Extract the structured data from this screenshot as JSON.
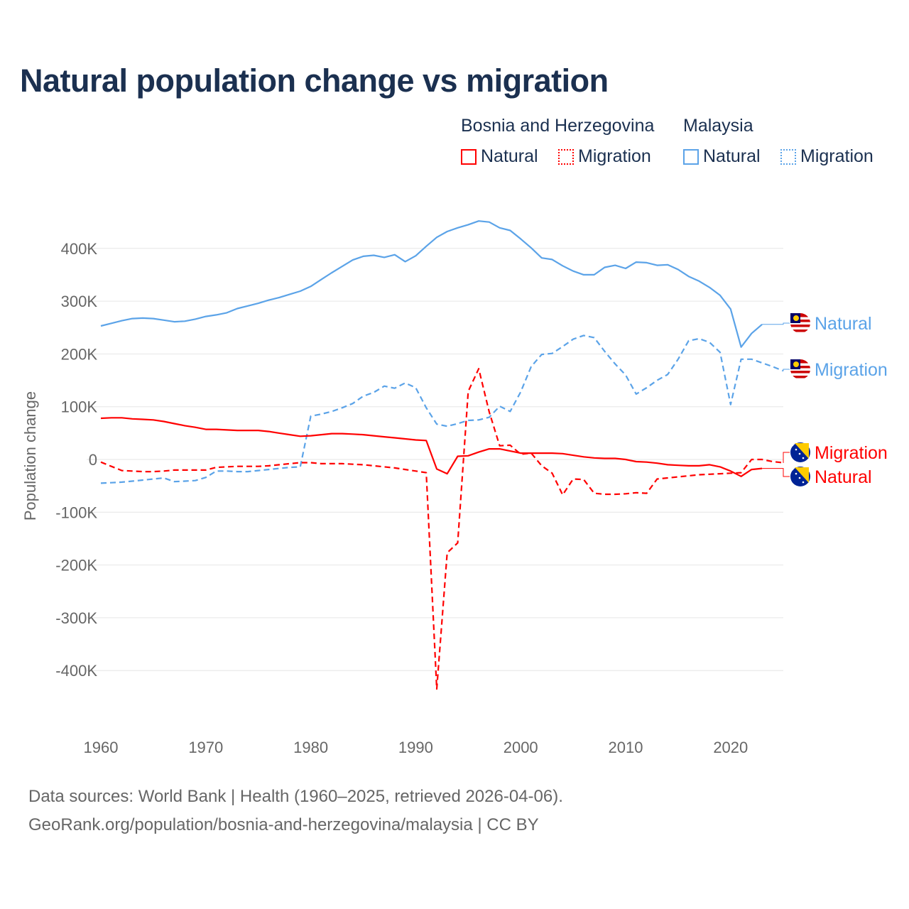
{
  "title": "Natural population change vs migration",
  "legend": {
    "groups": [
      {
        "name": "Bosnia and Herzegovina",
        "color": "#ff0000",
        "items": [
          "Natural",
          "Migration"
        ]
      },
      {
        "name": "Malaysia",
        "color": "#5ba3e8",
        "items": [
          "Natural",
          "Migration"
        ]
      }
    ]
  },
  "footer": {
    "line1": "Data sources: World Bank | Health (1960–2025, retrieved 2026-04-06).",
    "line2": "GeoRank.org/population/bosnia-and-herzegovina/malaysia | CC BY"
  },
  "chart_data": {
    "type": "line",
    "title": "Natural population change vs migration",
    "xlabel": "",
    "ylabel": "Population change",
    "xlim": [
      1960,
      2025
    ],
    "ylim": [
      -500000,
      450000
    ],
    "x_ticks": [
      1960,
      1970,
      1980,
      1990,
      2000,
      2010,
      2020
    ],
    "y_ticks": [
      {
        "value": 400000,
        "label": "400K"
      },
      {
        "value": 300000,
        "label": "300K"
      },
      {
        "value": 200000,
        "label": "200K"
      },
      {
        "value": 100000,
        "label": "100K"
      },
      {
        "value": 0,
        "label": "0"
      },
      {
        "value": -100000,
        "label": "-100K"
      },
      {
        "value": -200000,
        "label": "-200K"
      },
      {
        "value": -300000,
        "label": "-300K"
      },
      {
        "value": -400000,
        "label": "-400K"
      }
    ],
    "grid": true,
    "legend_position": "top-right",
    "series": [
      {
        "name": "Malaysia Natural",
        "label": "Natural",
        "country": "Malaysia",
        "color": "#5ba3e8",
        "dash": false,
        "start": 1960,
        "values_k": [
          253,
          258,
          263,
          267,
          268,
          267,
          264,
          261,
          262,
          266,
          271,
          274,
          278,
          286,
          291,
          296,
          302,
          307,
          313,
          319,
          328,
          341,
          354,
          366,
          378,
          385,
          387,
          383,
          388,
          375,
          386,
          404,
          421,
          432,
          439,
          445,
          452,
          450,
          439,
          434,
          418,
          401,
          382,
          379,
          367,
          357,
          350,
          350,
          364,
          368,
          362,
          374,
          373,
          368,
          369,
          360,
          347,
          338,
          326,
          311,
          285,
          213,
          239,
          256
        ]
      },
      {
        "name": "Malaysia Migration",
        "label": "Migration",
        "country": "Malaysia",
        "color": "#5ba3e8",
        "dash": true,
        "start": 1960,
        "values_k": [
          -45,
          -44,
          -43,
          -41,
          -39,
          -37,
          -35,
          -42,
          -41,
          -40,
          -34,
          -22,
          -22,
          -23,
          -23,
          -21,
          -19,
          -17,
          -15,
          -14,
          82,
          86,
          91,
          98,
          106,
          120,
          127,
          139,
          135,
          145,
          136,
          98,
          67,
          63,
          68,
          74,
          75,
          80,
          101,
          91,
          128,
          176,
          199,
          201,
          214,
          228,
          235,
          231,
          205,
          181,
          160,
          124,
          136,
          150,
          161,
          190,
          225,
          229,
          222,
          203,
          104,
          190,
          190,
          183,
          176,
          168
        ]
      },
      {
        "name": "Bosnia and Herzegovina Natural",
        "label": "Natural",
        "country": "Bosnia and Herzegovina",
        "color": "#ff0000",
        "dash": false,
        "start": 1960,
        "values_k": [
          78,
          79,
          79,
          77,
          76,
          75,
          72,
          68,
          64,
          61,
          57,
          57,
          56,
          55,
          55,
          55,
          53,
          50,
          47,
          44,
          45,
          47,
          49,
          49,
          48,
          47,
          45,
          43,
          41,
          39,
          37,
          36,
          -18,
          -27,
          6,
          7,
          14,
          20,
          20,
          16,
          12,
          12,
          12,
          12,
          11,
          8,
          5,
          3,
          2,
          2,
          0,
          -4,
          -5,
          -7,
          -10,
          -11,
          -12,
          -12,
          -10,
          -14,
          -22,
          -32,
          -19,
          -17
        ]
      },
      {
        "name": "Bosnia and Herzegovina Migration",
        "label": "Migration",
        "country": "Bosnia and Herzegovina",
        "color": "#ff0000",
        "dash": true,
        "start": 1960,
        "values_k": [
          -5,
          -13,
          -21,
          -22,
          -23,
          -23,
          -22,
          -20,
          -20,
          -20,
          -20,
          -15,
          -14,
          -13,
          -13,
          -13,
          -12,
          -10,
          -8,
          -6,
          -6,
          -8,
          -8,
          -8,
          -9,
          -10,
          -12,
          -14,
          -16,
          -19,
          -22,
          -25,
          -435,
          -177,
          -158,
          129,
          172,
          90,
          26,
          27,
          10,
          12,
          -12,
          -26,
          -67,
          -37,
          -38,
          -64,
          -66,
          -66,
          -65,
          -63,
          -64,
          -37,
          -35,
          -33,
          -31,
          -29,
          -28,
          -27,
          -26,
          -25,
          0,
          0,
          -4,
          -6
        ]
      }
    ]
  }
}
